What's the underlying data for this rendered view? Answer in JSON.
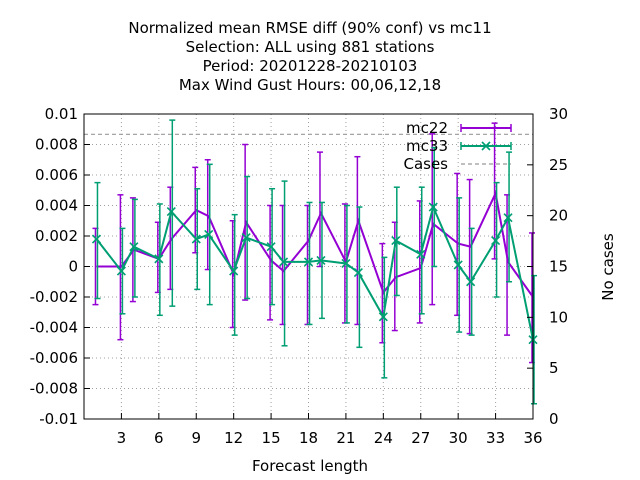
{
  "chart_data": {
    "type": "line",
    "title_lines": [
      "Normalized mean RMSE diff (90% conf) vs mc11",
      "Selection: ALL using   881 stations",
      "Period: 20201228-20210103",
      "Max Wind Gust   Hours:  00,06,12,18"
    ],
    "xlabel": "Forecast length",
    "ylabel_right": "No cases",
    "xlim": [
      0,
      36
    ],
    "ylim": [
      -0.01,
      0.01
    ],
    "y2lim": [
      0,
      30
    ],
    "x_ticks": [
      3,
      6,
      9,
      12,
      15,
      18,
      21,
      24,
      27,
      30,
      33,
      36
    ],
    "y_ticks": [
      -0.01,
      -0.008,
      -0.006,
      -0.004,
      -0.002,
      0,
      0.002,
      0.004,
      0.006,
      0.008,
      0.01
    ],
    "y_tick_labels": [
      "-0.01",
      "-0.008",
      "-0.006",
      "-0.004",
      "-0.002",
      "0",
      "0.002",
      "0.004",
      "0.006",
      "0.008",
      "0.01"
    ],
    "y2_ticks": [
      0,
      5,
      10,
      15,
      20,
      25,
      30
    ],
    "grid": true,
    "legend_position": "top-right",
    "series": [
      {
        "name": "mc22",
        "color": "#9400d3",
        "x": [
          1,
          3,
          4,
          6,
          7,
          9,
          10,
          12,
          13,
          15,
          16,
          18,
          19,
          21,
          22,
          24,
          25,
          27,
          28,
          30,
          31,
          33,
          34,
          36
        ],
        "y": [
          0.0,
          0.0,
          0.0011,
          0.0005,
          0.0018,
          0.0037,
          0.0033,
          -0.0005,
          0.0029,
          0.0004,
          -0.0003,
          0.0017,
          0.0035,
          0.0003,
          0.003,
          -0.0017,
          -0.0007,
          -0.0001,
          0.0028,
          0.0015,
          0.0013,
          0.0048,
          0.0003,
          -0.002
        ],
        "err_low": [
          -0.0025,
          -0.0048,
          -0.0023,
          -0.0017,
          -0.0015,
          0.0009,
          -0.0002,
          -0.004,
          -0.0022,
          -0.0035,
          -0.0038,
          -0.0038,
          0.0,
          -0.0037,
          -0.0038,
          -0.005,
          -0.0042,
          -0.0037,
          -0.0025,
          -0.0032,
          -0.0044,
          0.0005,
          -0.0045,
          -0.0063
        ],
        "err_high": [
          0.0025,
          0.0047,
          0.0045,
          0.0029,
          0.0052,
          0.0065,
          0.007,
          0.003,
          0.008,
          0.004,
          0.004,
          0.004,
          0.0075,
          0.0041,
          0.0072,
          0.0015,
          0.0029,
          0.0043,
          0.0087,
          0.0061,
          0.0057,
          0.0094,
          0.0047,
          0.0022
        ]
      },
      {
        "name": "mc33",
        "color": "#009e73",
        "x": [
          1,
          3,
          4,
          6,
          7,
          9,
          10,
          12,
          13,
          15,
          16,
          18,
          19,
          21,
          22,
          24,
          25,
          27,
          28,
          30,
          31,
          33,
          34,
          36
        ],
        "y": [
          0.0018,
          -0.0003,
          0.0013,
          0.0005,
          0.0036,
          0.0018,
          0.0021,
          -0.0003,
          0.0019,
          0.0013,
          0.0003,
          0.0003,
          0.0004,
          0.0002,
          -0.0004,
          -0.0033,
          0.0017,
          0.0008,
          0.0039,
          0.0001,
          -0.001,
          0.0017,
          0.0032,
          -0.0048
        ],
        "err_low": [
          -0.0021,
          -0.0031,
          -0.002,
          -0.0032,
          -0.0026,
          -0.0015,
          -0.0025,
          -0.0045,
          -0.0021,
          -0.0025,
          -0.0052,
          -0.0038,
          -0.0034,
          -0.0037,
          -0.0053,
          -0.0073,
          -0.0019,
          -0.0031,
          0.0,
          -0.0043,
          -0.0045,
          -0.002,
          -0.001,
          -0.009
        ],
        "err_high": [
          0.0055,
          0.0025,
          0.0044,
          0.0041,
          0.0096,
          0.0051,
          0.0067,
          0.0034,
          0.0059,
          0.0051,
          0.0056,
          0.0042,
          0.0042,
          0.004,
          0.0039,
          0.0006,
          0.0052,
          0.0052,
          0.0078,
          0.0045,
          0.0025,
          0.0055,
          0.0075,
          -0.0006
        ]
      },
      {
        "name": "Cases",
        "color": "#999999",
        "axis": "right",
        "x": [
          0,
          36
        ],
        "y": [
          28,
          28
        ]
      }
    ]
  }
}
